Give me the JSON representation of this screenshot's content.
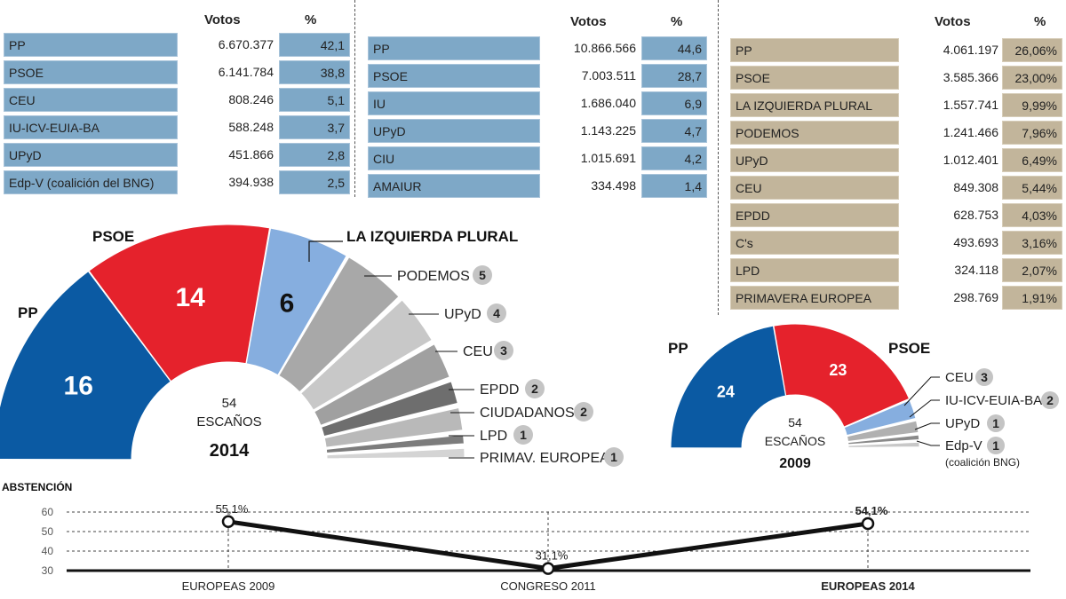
{
  "table_2009": {
    "header_votes": "Votos",
    "header_pct": "%",
    "rows": [
      {
        "party": "PP",
        "votes": "6.670.377",
        "pct": "42,1"
      },
      {
        "party": "PSOE",
        "votes": "6.141.784",
        "pct": "38,8"
      },
      {
        "party": "CEU",
        "votes": "808.246",
        "pct": "5,1"
      },
      {
        "party": "IU-ICV-EUIA-BA",
        "votes": "588.248",
        "pct": "3,7"
      },
      {
        "party": "UPyD",
        "votes": "451.866",
        "pct": "2,8"
      },
      {
        "party": "Edp-V (coalición del BNG)",
        "votes": "394.938",
        "pct": "2,5"
      }
    ]
  },
  "table_2011": {
    "header_votes": "Votos",
    "header_pct": "%",
    "rows": [
      {
        "party": "PP",
        "votes": "10.866.566",
        "pct": "44,6"
      },
      {
        "party": "PSOE",
        "votes": "7.003.511",
        "pct": "28,7"
      },
      {
        "party": "IU",
        "votes": "1.686.040",
        "pct": "6,9"
      },
      {
        "party": "UPyD",
        "votes": "1.143.225",
        "pct": "4,7"
      },
      {
        "party": "CIU",
        "votes": "1.015.691",
        "pct": "4,2"
      },
      {
        "party": "AMAIUR",
        "votes": "334.498",
        "pct": "1,4"
      }
    ]
  },
  "table_2014": {
    "header_votes": "Votos",
    "header_pct": "%",
    "rows": [
      {
        "party": "PP",
        "votes": "4.061.197",
        "pct": "26,06%"
      },
      {
        "party": "PSOE",
        "votes": "3.585.366",
        "pct": "23,00%"
      },
      {
        "party": "LA IZQUIERDA PLURAL",
        "votes": "1.557.741",
        "pct": "9,99%"
      },
      {
        "party": "PODEMOS",
        "votes": "1.241.466",
        "pct": "7,96%"
      },
      {
        "party": "UPyD",
        "votes": "1.012.401",
        "pct": "6,49%"
      },
      {
        "party": "CEU",
        "votes": "849.308",
        "pct": "5,44%"
      },
      {
        "party": "EPDD",
        "votes": "628.753",
        "pct": "4,03%"
      },
      {
        "party": "C's",
        "votes": "493.693",
        "pct": "3,16%"
      },
      {
        "party": "LPD",
        "votes": "324.118",
        "pct": "2,07%"
      },
      {
        "party": "PRIMAVERA EUROPEA",
        "votes": "298.769",
        "pct": "1,91%"
      }
    ]
  },
  "chart_data": [
    {
      "type": "pie",
      "subtype": "parliament-semicircle",
      "title": "2014",
      "center_number": "54",
      "center_label": "ESCAÑOS",
      "seats": [
        {
          "party": "PP",
          "label": "PP",
          "value": 16,
          "color": "#0b5aa3"
        },
        {
          "party": "PSOE",
          "label": "PSOE",
          "value": 14,
          "color": "#e5222c"
        },
        {
          "party": "LA IZQUIERDA PLURAL",
          "label": "LA IZQUIERDA PLURAL",
          "value": 6,
          "color": "#86aedf"
        },
        {
          "party": "PODEMOS",
          "label": "PODEMOS",
          "value": 5,
          "color": "#a8a8a8"
        },
        {
          "party": "UPyD",
          "label": "UPyD",
          "value": 4,
          "color": "#c8c8c8"
        },
        {
          "party": "CEU",
          "label": "CEU",
          "value": 3,
          "color": "#a0a0a0"
        },
        {
          "party": "EPDD",
          "label": "EPDD",
          "value": 2,
          "color": "#6e6e6e"
        },
        {
          "party": "CIUDADANOS",
          "label": "CIUDADANOS",
          "value": 2,
          "color": "#b9b9b9"
        },
        {
          "party": "LPD",
          "label": "LPD",
          "value": 1,
          "color": "#7c7c7c"
        },
        {
          "party": "PRIMAV. EUROPEA",
          "label": "PRIMAV. EUROPEA",
          "value": 1,
          "color": "#d4d4d4"
        }
      ]
    },
    {
      "type": "pie",
      "subtype": "parliament-semicircle",
      "title": "2009",
      "center_number": "54",
      "center_label": "ESCAÑOS",
      "seats": [
        {
          "party": "PP",
          "label": "PP",
          "value": 24,
          "color": "#0b5aa3"
        },
        {
          "party": "PSOE",
          "label": "PSOE",
          "value": 23,
          "color": "#e5222c"
        },
        {
          "party": "CEU",
          "label": "CEU",
          "value": 3,
          "color": "#86aedf"
        },
        {
          "party": "IU-ICV-EUIA-BA",
          "label": "IU-ICV-EUIA-BA",
          "value": 2,
          "color": "#b0b0b0"
        },
        {
          "party": "UPyD",
          "label": "UPyD",
          "value": 1,
          "color": "#8a8a8a"
        },
        {
          "party": "Edp-V",
          "label": "Edp-V",
          "sublabel": "(coalición BNG)",
          "value": 1,
          "color": "#c8c8c8"
        }
      ]
    },
    {
      "type": "line",
      "title": "ABSTENCIÓN",
      "categories": [
        "EUROPEAS 2009",
        "CONGRESO 2011",
        "EUROPEAS 2014"
      ],
      "values": [
        55.1,
        31.1,
        54.1
      ],
      "value_labels": [
        "55,1%",
        "31,1%",
        "54,1%"
      ],
      "yticks": [
        30,
        40,
        50,
        60
      ],
      "ylim": [
        30,
        60
      ],
      "grid": true
    }
  ]
}
